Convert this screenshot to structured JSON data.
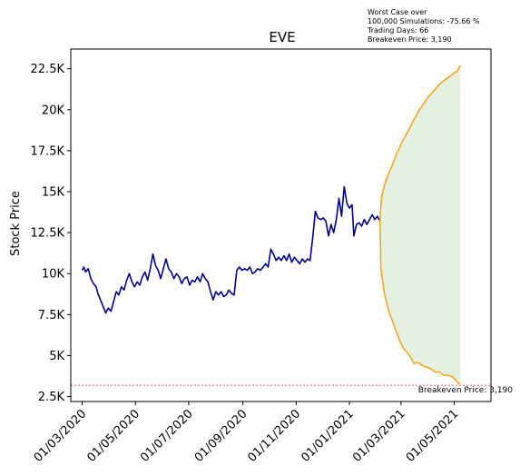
{
  "chart_data": {
    "type": "line",
    "title": "EVE",
    "ylabel": "Stock Price",
    "xlabel": "",
    "ylim": [
      2200,
      23700
    ],
    "xlim": [
      "2020-02-17",
      "2021-06-12"
    ],
    "y_ticks": [
      {
        "value": 2500,
        "label": "2.5K"
      },
      {
        "value": 5000,
        "label": "5K"
      },
      {
        "value": 7500,
        "label": "7.5K"
      },
      {
        "value": 10000,
        "label": "10K"
      },
      {
        "value": 12500,
        "label": "12.5K"
      },
      {
        "value": 15000,
        "label": "15K"
      },
      {
        "value": 17500,
        "label": "17.5K"
      },
      {
        "value": 20000,
        "label": "20K"
      },
      {
        "value": 22500,
        "label": "22.5K"
      }
    ],
    "x_ticks": [
      {
        "value": "2020-03-01",
        "label": "01/03/2020"
      },
      {
        "value": "2020-05-01",
        "label": "01/05/2020"
      },
      {
        "value": "2020-07-01",
        "label": "01/07/2020"
      },
      {
        "value": "2020-09-01",
        "label": "01/09/2020"
      },
      {
        "value": "2020-11-01",
        "label": "01/11/2020"
      },
      {
        "value": "2021-01-01",
        "label": "01/01/2021"
      },
      {
        "value": "2021-03-01",
        "label": "01/03/2021"
      },
      {
        "value": "2021-05-01",
        "label": "01/05/2021"
      }
    ],
    "annotation_lines": [
      "Worst Case over",
      "100,000 Simulations: -75.66 %",
      "Trading Days: 66",
      "Breakeven Price: 3,190"
    ],
    "breakeven": {
      "value": 3190,
      "label": "Breakeven Price: 3,190",
      "color": "#d62728"
    },
    "series": [
      {
        "role": "history",
        "color": "#00008b",
        "points": [
          [
            "2020-03-01",
            10200
          ],
          [
            "2020-03-03",
            10400
          ],
          [
            "2020-03-05",
            10100
          ],
          [
            "2020-03-08",
            10300
          ],
          [
            "2020-03-11",
            9700
          ],
          [
            "2020-03-14",
            9400
          ],
          [
            "2020-03-17",
            9200
          ],
          [
            "2020-03-19",
            8800
          ],
          [
            "2020-03-22",
            8400
          ],
          [
            "2020-03-25",
            8000
          ],
          [
            "2020-03-28",
            7600
          ],
          [
            "2020-03-31",
            7900
          ],
          [
            "2020-04-03",
            7700
          ],
          [
            "2020-04-06",
            8300
          ],
          [
            "2020-04-09",
            8900
          ],
          [
            "2020-04-12",
            8700
          ],
          [
            "2020-04-15",
            9200
          ],
          [
            "2020-04-18",
            9000
          ],
          [
            "2020-04-21",
            9600
          ],
          [
            "2020-04-24",
            10000
          ],
          [
            "2020-04-27",
            9500
          ],
          [
            "2020-04-30",
            9200
          ],
          [
            "2020-05-03",
            9500
          ],
          [
            "2020-05-06",
            9300
          ],
          [
            "2020-05-09",
            9800
          ],
          [
            "2020-05-12",
            10100
          ],
          [
            "2020-05-15",
            9600
          ],
          [
            "2020-05-18",
            10300
          ],
          [
            "2020-05-21",
            11200
          ],
          [
            "2020-05-24",
            10500
          ],
          [
            "2020-05-27",
            10200
          ],
          [
            "2020-05-30",
            9700
          ],
          [
            "2020-06-02",
            10300
          ],
          [
            "2020-06-05",
            10900
          ],
          [
            "2020-06-08",
            10300
          ],
          [
            "2020-06-11",
            10100
          ],
          [
            "2020-06-14",
            9700
          ],
          [
            "2020-06-17",
            10000
          ],
          [
            "2020-06-20",
            9800
          ],
          [
            "2020-06-23",
            9400
          ],
          [
            "2020-06-26",
            9700
          ],
          [
            "2020-06-29",
            9800
          ],
          [
            "2020-07-02",
            9300
          ],
          [
            "2020-07-05",
            9600
          ],
          [
            "2020-07-08",
            9500
          ],
          [
            "2020-07-11",
            9800
          ],
          [
            "2020-07-14",
            9500
          ],
          [
            "2020-07-17",
            10000
          ],
          [
            "2020-07-20",
            9700
          ],
          [
            "2020-07-23",
            9500
          ],
          [
            "2020-07-26",
            8900
          ],
          [
            "2020-07-29",
            8400
          ],
          [
            "2020-08-01",
            8900
          ],
          [
            "2020-08-04",
            8700
          ],
          [
            "2020-08-07",
            8900
          ],
          [
            "2020-08-10",
            8600
          ],
          [
            "2020-08-13",
            8700
          ],
          [
            "2020-08-16",
            9000
          ],
          [
            "2020-08-19",
            8800
          ],
          [
            "2020-08-22",
            8700
          ],
          [
            "2020-08-25",
            10200
          ],
          [
            "2020-08-28",
            10400
          ],
          [
            "2020-08-31",
            10200
          ],
          [
            "2020-09-03",
            10300
          ],
          [
            "2020-09-06",
            10200
          ],
          [
            "2020-09-09",
            10400
          ],
          [
            "2020-09-12",
            10000
          ],
          [
            "2020-09-15",
            10100
          ],
          [
            "2020-09-18",
            10300
          ],
          [
            "2020-09-21",
            10200
          ],
          [
            "2020-09-24",
            10400
          ],
          [
            "2020-09-27",
            10600
          ],
          [
            "2020-09-30",
            10400
          ],
          [
            "2020-10-03",
            11500
          ],
          [
            "2020-10-06",
            11200
          ],
          [
            "2020-10-09",
            10800
          ],
          [
            "2020-10-12",
            11000
          ],
          [
            "2020-10-15",
            10800
          ],
          [
            "2020-10-18",
            11100
          ],
          [
            "2020-10-21",
            10800
          ],
          [
            "2020-10-24",
            11200
          ],
          [
            "2020-10-27",
            10700
          ],
          [
            "2020-10-30",
            11000
          ],
          [
            "2020-11-02",
            10800
          ],
          [
            "2020-11-05",
            10600
          ],
          [
            "2020-11-08",
            10900
          ],
          [
            "2020-11-11",
            10700
          ],
          [
            "2020-11-14",
            10900
          ],
          [
            "2020-11-17",
            10800
          ],
          [
            "2020-11-20",
            12200
          ],
          [
            "2020-11-23",
            13800
          ],
          [
            "2020-11-26",
            13400
          ],
          [
            "2020-11-29",
            13300
          ],
          [
            "2020-12-02",
            13400
          ],
          [
            "2020-12-05",
            13200
          ],
          [
            "2020-12-08",
            12300
          ],
          [
            "2020-12-11",
            13000
          ],
          [
            "2020-12-14",
            12500
          ],
          [
            "2020-12-17",
            13300
          ],
          [
            "2020-12-20",
            14600
          ],
          [
            "2020-12-23",
            13500
          ],
          [
            "2020-12-26",
            15300
          ],
          [
            "2020-12-29",
            14300
          ],
          [
            "2021-01-01",
            14000
          ],
          [
            "2021-01-04",
            14200
          ],
          [
            "2021-01-06",
            12300
          ],
          [
            "2021-01-09",
            13000
          ],
          [
            "2021-01-12",
            13100
          ],
          [
            "2021-01-15",
            12900
          ],
          [
            "2021-01-18",
            13300
          ],
          [
            "2021-01-21",
            13000
          ],
          [
            "2021-01-24",
            13300
          ],
          [
            "2021-01-27",
            13600
          ],
          [
            "2021-01-30",
            13300
          ],
          [
            "2021-02-02",
            13500
          ],
          [
            "2021-02-05",
            13200
          ]
        ]
      },
      {
        "role": "simulation-upper",
        "color": "#f5a623",
        "points": [
          [
            "2021-02-05",
            13200
          ],
          [
            "2021-02-06",
            14200
          ],
          [
            "2021-02-07",
            14700
          ],
          [
            "2021-02-10",
            15400
          ],
          [
            "2021-02-14",
            16000
          ],
          [
            "2021-02-19",
            16600
          ],
          [
            "2021-02-24",
            17300
          ],
          [
            "2021-03-01",
            17900
          ],
          [
            "2021-03-06",
            18400
          ],
          [
            "2021-03-11",
            18900
          ],
          [
            "2021-03-16",
            19400
          ],
          [
            "2021-03-21",
            19900
          ],
          [
            "2021-03-26",
            20300
          ],
          [
            "2021-03-31",
            20700
          ],
          [
            "2021-04-05",
            21000
          ],
          [
            "2021-04-10",
            21300
          ],
          [
            "2021-04-15",
            21600
          ],
          [
            "2021-04-20",
            21800
          ],
          [
            "2021-04-25",
            22000
          ],
          [
            "2021-04-30",
            22200
          ],
          [
            "2021-05-05",
            22400
          ],
          [
            "2021-05-08",
            22700
          ]
        ]
      },
      {
        "role": "simulation-lower",
        "color": "#f5a623",
        "points": [
          [
            "2021-02-05",
            13200
          ],
          [
            "2021-02-06",
            10300
          ],
          [
            "2021-02-10",
            8800
          ],
          [
            "2021-02-15",
            7700
          ],
          [
            "2021-02-20",
            7000
          ],
          [
            "2021-02-26",
            6100
          ],
          [
            "2021-03-03",
            5500
          ],
          [
            "2021-03-08",
            5200
          ],
          [
            "2021-03-12",
            4900
          ],
          [
            "2021-03-16",
            4500
          ],
          [
            "2021-03-20",
            4600
          ],
          [
            "2021-03-25",
            4400
          ],
          [
            "2021-03-30",
            4300
          ],
          [
            "2021-04-04",
            4200
          ],
          [
            "2021-04-09",
            4000
          ],
          [
            "2021-04-14",
            4000
          ],
          [
            "2021-04-19",
            3800
          ],
          [
            "2021-04-24",
            3800
          ],
          [
            "2021-04-29",
            3700
          ],
          [
            "2021-05-03",
            3500
          ],
          [
            "2021-05-06",
            3300
          ],
          [
            "2021-05-08",
            3300
          ]
        ]
      }
    ],
    "fill_between": {
      "upper": "simulation-upper",
      "lower": "simulation-lower",
      "color": "#e4f1e0"
    },
    "grid": false,
    "legend": "none"
  }
}
